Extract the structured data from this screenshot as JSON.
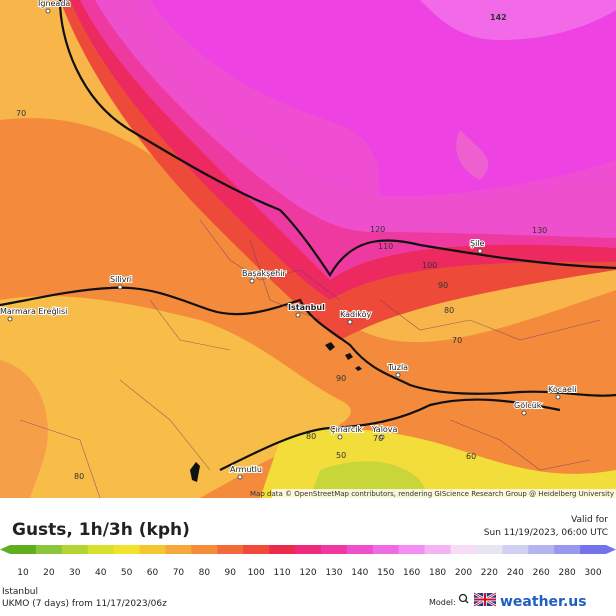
{
  "map": {
    "attribution": "Map data © OpenStreetMap contributors, rendering GIScience Research Group @ Heidelberg University",
    "places": [
      "Igneada",
      "Başakşehir",
      "Istanbul",
      "Silivri",
      "Marmara Ereğlisi",
      "Kadıköy",
      "Şile",
      "Tuzla",
      "Kocaeli",
      "Gölcük",
      "Çınarcık",
      "Yalova",
      "Armutlu"
    ],
    "contour_labels": [
      "142",
      "70",
      "120",
      "130",
      "110",
      "100",
      "90",
      "80",
      "70",
      "90",
      "80",
      "70",
      "60",
      "50",
      "80"
    ]
  },
  "footer": {
    "title": "Gusts, 1h/3h (kph)",
    "valid_label": "Valid for",
    "valid_time": "Sun 11/19/2023, 06:00 UTC",
    "location": "Istanbul",
    "model_run": "UKMO (7 days) from 11/17/2023/06z",
    "model_label": "Model:",
    "brand": "weather.us",
    "legend": [
      {
        "value": 10,
        "color": "#5fae1e"
      },
      {
        "value": 20,
        "color": "#8cc63f"
      },
      {
        "value": 30,
        "color": "#b4d334"
      },
      {
        "value": 40,
        "color": "#d7e02a"
      },
      {
        "value": 50,
        "color": "#f2e22c"
      },
      {
        "value": 60,
        "color": "#f5c631"
      },
      {
        "value": 70,
        "color": "#f5a93a"
      },
      {
        "value": 80,
        "color": "#f58c3a"
      },
      {
        "value": 90,
        "color": "#f26a3a"
      },
      {
        "value": 100,
        "color": "#ef4a3a"
      },
      {
        "value": 110,
        "color": "#ec2a4a"
      },
      {
        "value": 120,
        "color": "#ee2a7a"
      },
      {
        "value": 130,
        "color": "#ee3aa0"
      },
      {
        "value": 140,
        "color": "#ee4fcc"
      },
      {
        "value": 150,
        "color": "#ef6be6"
      },
      {
        "value": 160,
        "color": "#f28ef0"
      },
      {
        "value": 180,
        "color": "#f4b4f4"
      },
      {
        "value": 200,
        "color": "#f6dcf6"
      },
      {
        "value": 220,
        "color": "#e6e6f2"
      },
      {
        "value": 240,
        "color": "#d0d0f2"
      },
      {
        "value": 260,
        "color": "#b4b4f0"
      },
      {
        "value": 280,
        "color": "#9898f0"
      },
      {
        "value": 300,
        "color": "#7474ea"
      }
    ]
  }
}
